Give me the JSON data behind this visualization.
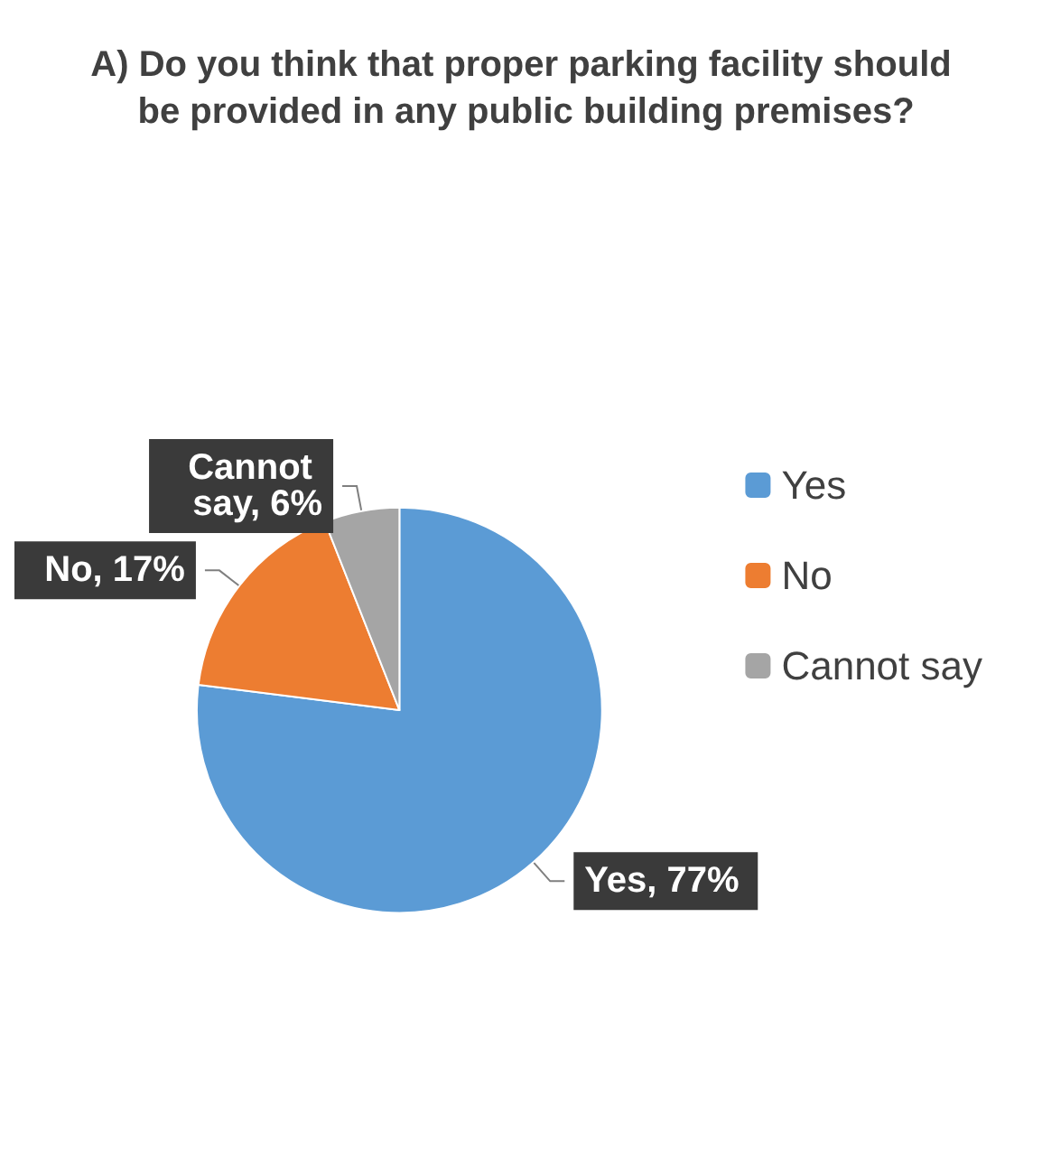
{
  "chart_data": {
    "type": "pie",
    "title": "A) Do you think that proper parking facility should be provided in any public building premises?",
    "categories": [
      "Yes",
      "No",
      "Cannot say"
    ],
    "values": [
      77,
      17,
      6
    ],
    "colors": [
      "#5b9bd5",
      "#ed7d31",
      "#a5a5a5"
    ],
    "value_labels": [
      "Yes, 77%",
      "No, 17%",
      "Cannot say, 6%"
    ],
    "legend": "right"
  }
}
